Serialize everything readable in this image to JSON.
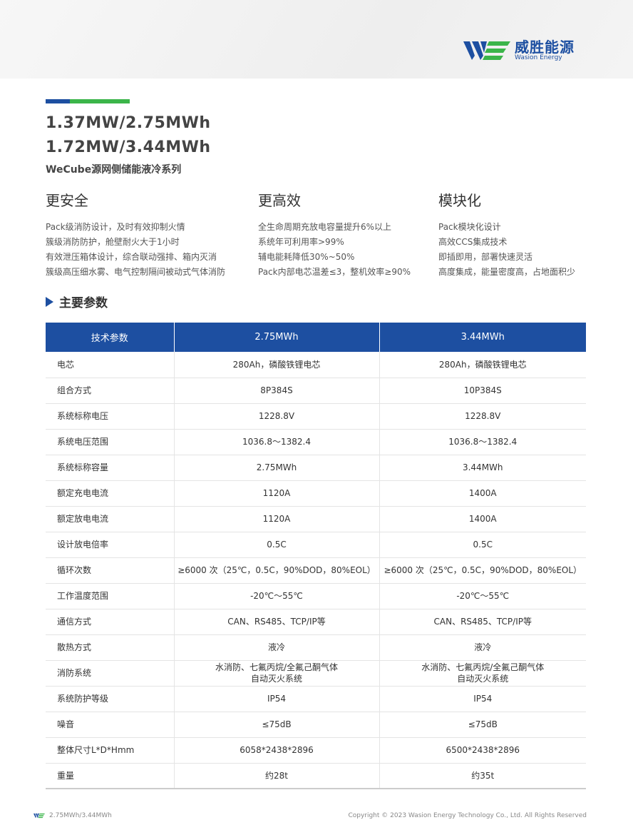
{
  "brand": {
    "name_cn": "威胜能源",
    "name_en": "Wasion Energy",
    "colors": {
      "blue": "#1d4fa1",
      "green": "#3bb54a"
    }
  },
  "title": {
    "line1": "1.37MW/2.75MWh",
    "line2": "1.72MW/3.44MWh",
    "subtitle": "WeCube源网侧储能液冷系列"
  },
  "features": [
    {
      "title": "更安全",
      "items": [
        "Pack级消防设计，及时有效抑制火情",
        "簇级消防防护，舱壁耐火大于1小时",
        "有效泄压箱体设计，综合联动强排、箱内灭消",
        "簇级高压细水雾、电气控制隔间被动式气体消防"
      ]
    },
    {
      "title": "更高效",
      "items": [
        "全生命周期充放电容量提升6%以上",
        "系统年可利用率>99%",
        "辅电能耗降低30%~50%",
        "Pack内部电芯温差≤3，整机效率≥90%"
      ]
    },
    {
      "title": "模块化",
      "items": [
        "Pack模块化设计",
        "高效CCS集成技术",
        "即插即用，部署快速灵活",
        "高度集成，能量密度高，占地面积少"
      ]
    }
  ],
  "section_title": "主要参数",
  "table": {
    "headers": [
      "技术参数",
      "2.75MWh",
      "3.44MWh"
    ],
    "rows": [
      [
        "电芯",
        "280Ah，磷酸铁锂电芯",
        "280Ah，磷酸铁锂电芯"
      ],
      [
        "组合方式",
        "8P384S",
        "10P384S"
      ],
      [
        "系统标称电压",
        "1228.8V",
        "1228.8V"
      ],
      [
        "系统电压范围",
        "1036.8～1382.4",
        "1036.8～1382.4"
      ],
      [
        "系统标称容量",
        "2.75MWh",
        "3.44MWh"
      ],
      [
        "额定充电电流",
        "1120A",
        "1400A"
      ],
      [
        "额定放电电流",
        "1120A",
        "1400A"
      ],
      [
        "设计放电倍率",
        "0.5C",
        "0.5C"
      ],
      [
        "循环次数",
        "≥6000 次（25℃，0.5C，90%DOD，80%EOL）",
        "≥6000 次（25℃，0.5C，90%DOD，80%EOL）"
      ],
      [
        "工作温度范围",
        "-20℃～55℃",
        "-20℃～55℃"
      ],
      [
        "通信方式",
        "CAN、RS485、TCP/IP等",
        "CAN、RS485、TCP/IP等"
      ],
      [
        "散热方式",
        "液冷",
        "液冷"
      ],
      [
        "消防系统",
        "水消防、七氟丙烷/全氟己酮气体\n自动灭火系统",
        "水消防、七氟丙烷/全氟己酮气体\n自动灭火系统"
      ],
      [
        "系统防护等级",
        "IP54",
        "IP54"
      ],
      [
        "噪音",
        "≤75dB",
        "≤75dB"
      ],
      [
        "整体尺寸L*D*Hmm",
        "6058*2438*2896",
        "6500*2438*2896"
      ],
      [
        "重量",
        "约28t",
        "约35t"
      ]
    ]
  },
  "footer": {
    "left": "2.75MWh/3.44MWh",
    "right": "Copyright © 2023 Wasion Energy Technology Co., Ltd. All Rights Reserved"
  }
}
